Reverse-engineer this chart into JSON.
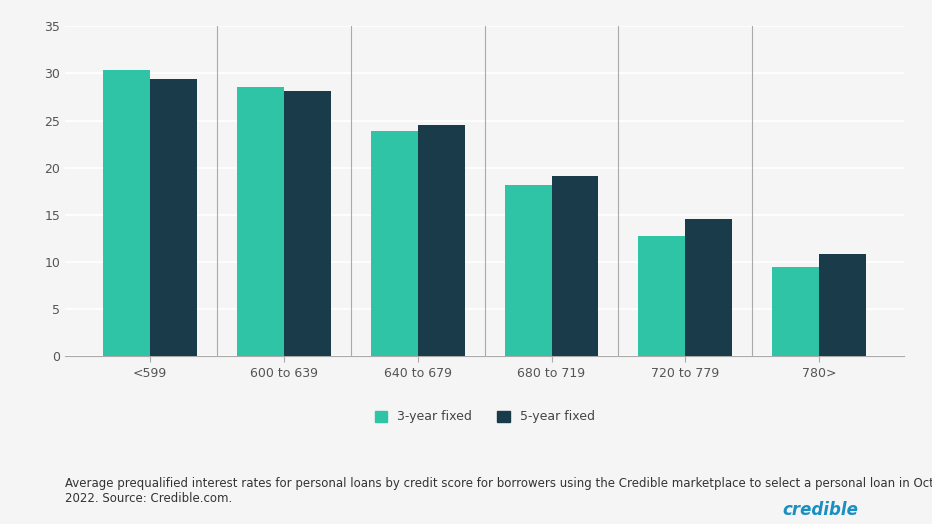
{
  "categories": [
    "<599",
    "600 to 639",
    "640 to 679",
    "680 to 719",
    "720 to 779",
    "780>"
  ],
  "three_year": [
    30.4,
    28.6,
    23.9,
    18.2,
    12.8,
    9.5
  ],
  "five_year": [
    29.4,
    28.1,
    24.5,
    19.1,
    14.6,
    10.8
  ],
  "color_3yr": "#2EC4A5",
  "color_5yr": "#1A3C4A",
  "ylim": [
    0,
    35
  ],
  "yticks": [
    0,
    5,
    10,
    15,
    20,
    25,
    30,
    35
  ],
  "legend_3yr": "3-year fixed",
  "legend_5yr": "5-year fixed",
  "caption_line1": "Average prequalified interest rates for personal loans by credit score for borrowers using the Credible marketplace to select a personal loan in October",
  "caption_line2": "2022. Source: Credible.com.",
  "credible_text": "credible",
  "credible_color": "#1A8FC1",
  "background_color": "#f5f5f5",
  "bar_width": 0.35,
  "tick_fontsize": 9,
  "legend_fontsize": 9,
  "caption_fontsize": 8.5
}
